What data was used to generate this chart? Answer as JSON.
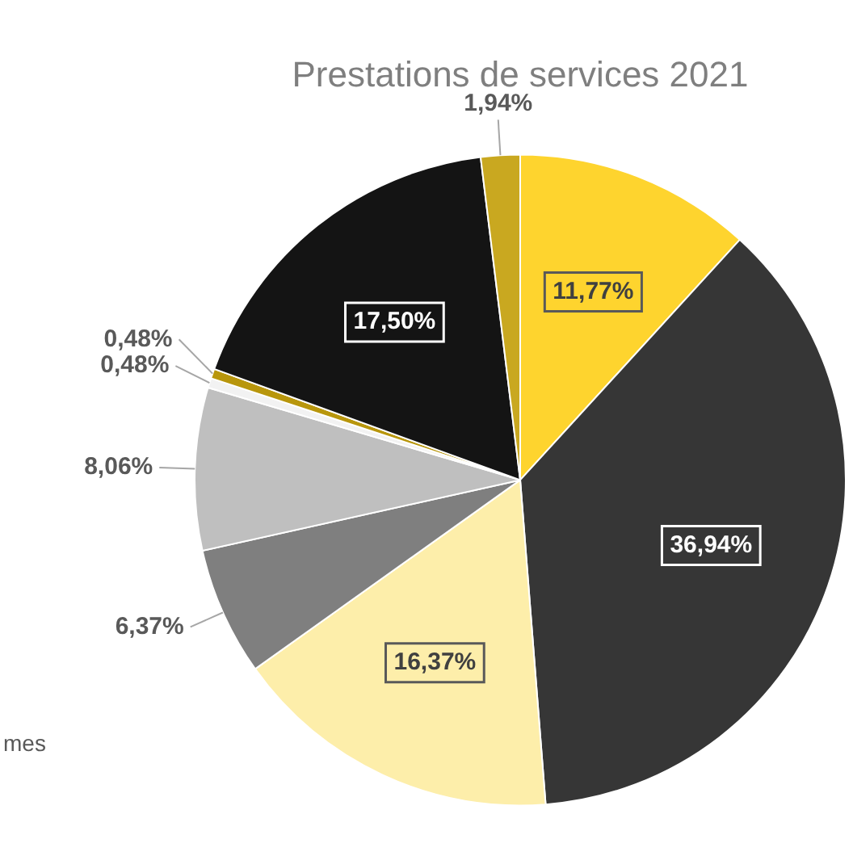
{
  "chart_data": {
    "type": "pie",
    "title": "Prestations de services 2021",
    "categories": [
      null,
      null,
      null,
      null,
      null,
      null,
      null,
      null,
      null
    ],
    "values": [
      11.77,
      36.94,
      16.37,
      6.37,
      8.06,
      0.48,
      0.48,
      17.5,
      1.94
    ],
    "colors": [
      "#fed42e",
      "#363636",
      "#fdeeaa",
      "#7f7f7f",
      "#bfbfbf",
      "#f2f2f2",
      "#b8960c",
      "#141414",
      "#c9a820"
    ],
    "value_labels": [
      "11,77%",
      "36,94%",
      "16,37%",
      "6,37%",
      "8,06%",
      "0,48%",
      "0,48%",
      "17,50%",
      "1,94%"
    ],
    "legend": false,
    "annotations": [
      "mes"
    ]
  }
}
